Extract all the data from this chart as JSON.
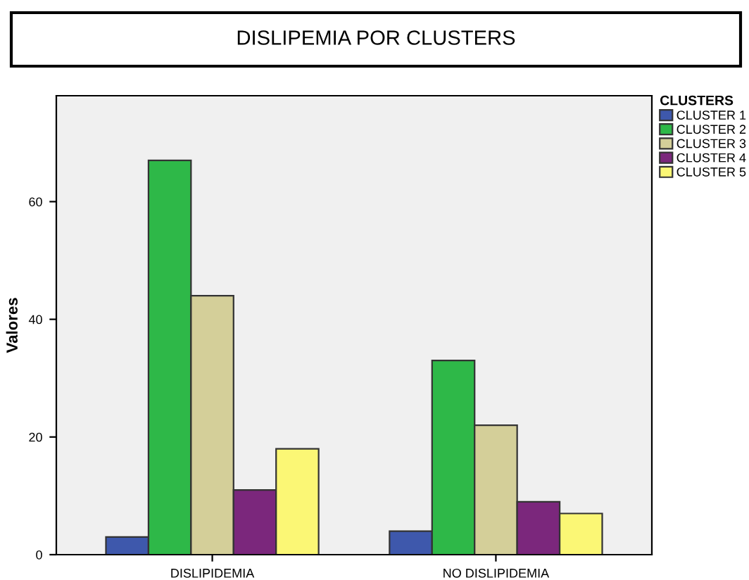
{
  "chart_data": {
    "type": "bar",
    "title": "DISLIPEMIA POR CLUSTERS",
    "ylabel": "Valores",
    "legend_title": "CLUSTERS",
    "categories": [
      "DISLIPIDEMIA",
      "NO DISLIPIDEMIA"
    ],
    "series": [
      {
        "name": "CLUSTER 1",
        "color": "#3e58ac",
        "values": [
          3,
          4
        ]
      },
      {
        "name": "CLUSTER 2",
        "color": "#2eb848",
        "values": [
          67,
          33
        ]
      },
      {
        "name": "CLUSTER 3",
        "color": "#d4cf99",
        "values": [
          44,
          22
        ]
      },
      {
        "name": "CLUSTER 4",
        "color": "#7b277c",
        "values": [
          11,
          9
        ]
      },
      {
        "name": "CLUSTER 5",
        "color": "#fbf775",
        "values": [
          18,
          7
        ]
      }
    ],
    "ylim": [
      0,
      78
    ],
    "yticks": [
      0,
      20,
      40,
      60
    ],
    "grid": false,
    "legend": "top right"
  }
}
